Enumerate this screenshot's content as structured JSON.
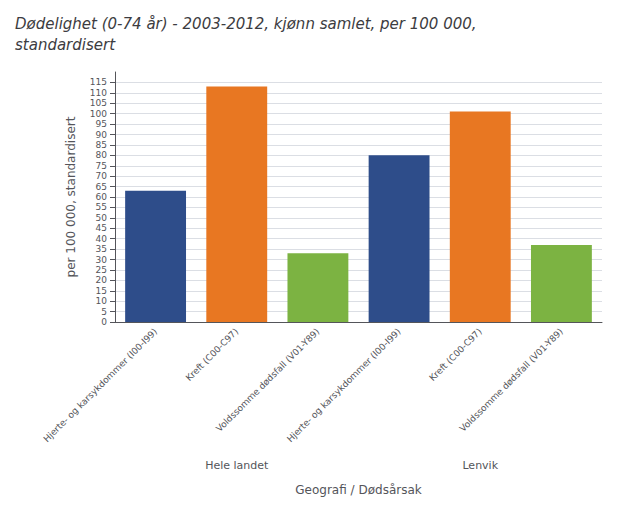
{
  "chart_data": {
    "type": "bar",
    "title": "Dødelighet (0-74 år) - 2003-2012, kjønn samlet, per 100 000,\nstandardisert",
    "ylabel": "per 100 000, standardisert",
    "xlabel": "Geografi / Dødsårsak",
    "categories": [
      "Hele landet",
      "Lenvik"
    ],
    "series": [
      {
        "name": "Hjerte- og karsykdommer (I00-I99)",
        "color": "#2E4D8A",
        "values": [
          63,
          80
        ]
      },
      {
        "name": "Kreft (C00-C97)",
        "color": "#E87722",
        "values": [
          113,
          101
        ]
      },
      {
        "name": "Voldssomme dødsfall (V01-Y89)",
        "color": "#7CB342",
        "values": [
          33,
          37
        ]
      }
    ],
    "ylim": [
      0,
      120
    ],
    "yticks": [
      0,
      5,
      10,
      15,
      20,
      25,
      30,
      35,
      40,
      45,
      50,
      55,
      60,
      65,
      70,
      75,
      80,
      85,
      90,
      95,
      100,
      105,
      110,
      115
    ],
    "grid": true
  }
}
